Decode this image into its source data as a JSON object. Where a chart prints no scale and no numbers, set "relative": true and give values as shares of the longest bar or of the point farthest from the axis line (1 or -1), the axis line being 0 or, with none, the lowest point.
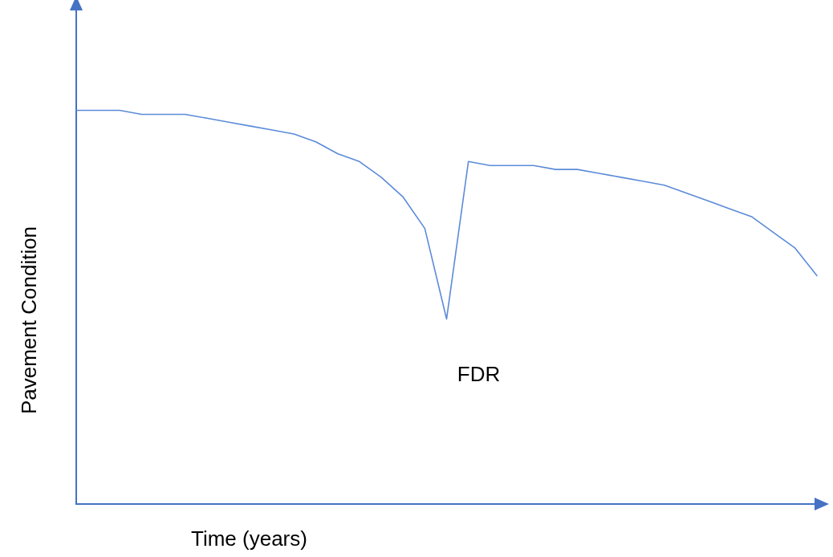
{
  "chart_data": {
    "type": "line",
    "xlabel": "Time (years)",
    "ylabel": "Pavement Condition",
    "relative": true,
    "legend": false,
    "marker": "none",
    "line_style": "solid",
    "categories": [
      null,
      null,
      null,
      null,
      null,
      null,
      null,
      null,
      null,
      null,
      null,
      null,
      null,
      null,
      null,
      null,
      null,
      null,
      null,
      null,
      null,
      null,
      null,
      null,
      null,
      null,
      null,
      null,
      null,
      null,
      null,
      null,
      null,
      null,
      null
    ],
    "series": [
      {
        "color": "#5b8bd9",
        "values": [
          1,
          1,
          1,
          0.99,
          0.99,
          0.99,
          0.98,
          0.97,
          0.96,
          0.95,
          0.94,
          0.92,
          0.89,
          0.87,
          0.83,
          0.78,
          0.7,
          0.47,
          0.87,
          0.86,
          0.86,
          0.86,
          0.85,
          0.85,
          0.84,
          0.83,
          0.82,
          0.81,
          0.79,
          0.77,
          0.75,
          0.73,
          0.69,
          0.65,
          0.58
        ]
      }
    ],
    "annotations": [
      "FDR"
    ]
  }
}
